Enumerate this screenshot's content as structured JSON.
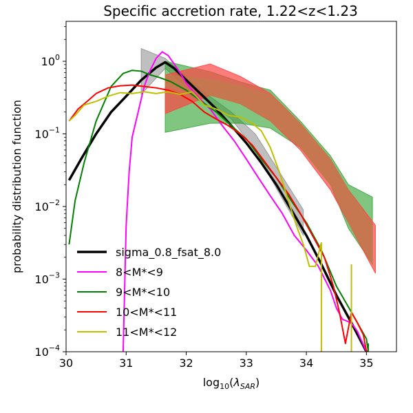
{
  "chart_data": {
    "type": "line",
    "title": "Specific accretion rate, 1.22<z<1.23",
    "xlabel_main": "log",
    "xlabel_sub": "10",
    "xlabel_paren_open": "(",
    "xlabel_lambda": "λ",
    "xlabel_lambda_sub": "SAR",
    "xlabel_paren_close": ")",
    "ylabel": "probability distribution function",
    "xlim": [
      30.0,
      35.5
    ],
    "ylim_log10": [
      -4,
      0.55
    ],
    "y_scale": "log",
    "grid": false,
    "legend_placement": "lower-left",
    "x_ticks": [
      {
        "v": 30,
        "label": "30"
      },
      {
        "v": 31,
        "label": "31"
      },
      {
        "v": 32,
        "label": "32"
      },
      {
        "v": 33,
        "label": "33"
      },
      {
        "v": 34,
        "label": "34"
      },
      {
        "v": 35,
        "label": "35"
      }
    ],
    "y_ticks": [
      {
        "e": 0,
        "base": "10",
        "exp": "0"
      },
      {
        "e": -1,
        "base": "10",
        "exp": "−1"
      },
      {
        "e": -2,
        "base": "10",
        "exp": "−2"
      },
      {
        "e": -3,
        "base": "10",
        "exp": "−3"
      },
      {
        "e": -4,
        "base": "10",
        "exp": "−4"
      }
    ],
    "bands": [
      {
        "color": "#808080",
        "opacity": 0.5,
        "x": [
          31.25,
          31.65,
          32.0,
          32.35,
          32.75,
          33.15,
          33.55,
          33.95
        ],
        "upper": [
          1.5,
          1.1,
          0.6,
          0.35,
          0.2,
          0.1,
          0.03,
          0.009
        ],
        "lower": [
          0.35,
          0.8,
          0.45,
          0.28,
          0.16,
          0.06,
          0.015,
          0.004
        ]
      },
      {
        "color": "#2ca02c",
        "opacity": 0.6,
        "x": [
          31.65,
          32.4,
          32.9,
          33.4,
          33.9,
          34.4,
          34.7,
          35.1
        ],
        "upper": [
          1.0,
          0.72,
          0.52,
          0.4,
          0.15,
          0.05,
          0.02,
          0.0135
        ],
        "lower": [
          0.105,
          0.14,
          0.14,
          0.12,
          0.065,
          0.02,
          0.005,
          0.0016
        ]
      },
      {
        "color": "#ff4444",
        "opacity": 0.7,
        "x": [
          31.65,
          32.4,
          32.9,
          33.4,
          33.9,
          34.4,
          34.7,
          35.15
        ],
        "upper": [
          0.65,
          0.92,
          0.62,
          0.36,
          0.14,
          0.045,
          0.017,
          0.0055
        ],
        "lower": [
          0.19,
          0.34,
          0.26,
          0.15,
          0.06,
          0.017,
          0.006,
          0.0012
        ]
      },
      {
        "color": "#b8824a",
        "opacity": 0.55,
        "x": [
          31.65,
          32.4,
          32.9,
          33.4,
          33.9,
          34.4,
          34.7,
          35.1
        ],
        "upper": [
          0.65,
          0.56,
          0.45,
          0.34,
          0.14,
          0.045,
          0.017,
          0.0055
        ],
        "lower": [
          0.45,
          0.34,
          0.26,
          0.15,
          0.065,
          0.02,
          0.006,
          0.0016
        ]
      }
    ],
    "series": [
      {
        "name": "sigma_0.8_fsat_8.0",
        "color": "#000000",
        "width": 3.5,
        "x": [
          30.05,
          30.25,
          30.5,
          30.75,
          31.0,
          31.25,
          31.5,
          31.65,
          31.8,
          32.0,
          32.25,
          32.5,
          32.75,
          33.0,
          33.25,
          33.5,
          33.75,
          34.0,
          34.25,
          34.5,
          34.75,
          35.0
        ],
        "y": [
          0.023,
          0.045,
          0.1,
          0.2,
          0.33,
          0.55,
          0.82,
          0.97,
          0.8,
          0.55,
          0.35,
          0.22,
          0.13,
          0.075,
          0.04,
          0.02,
          0.009,
          0.004,
          0.0016,
          0.0006,
          0.00025,
          0.0001
        ]
      },
      {
        "name": "8<M*<9",
        "color": "#ff00ff",
        "width": 2,
        "x": [
          30.95,
          31.0,
          31.05,
          31.1,
          31.2,
          31.3,
          31.4,
          31.5,
          31.6,
          31.7,
          31.85,
          32.0,
          32.2,
          32.4,
          32.6,
          32.8,
          33.0,
          33.2,
          33.4,
          33.6,
          33.8,
          34.0,
          34.2,
          34.4,
          34.5,
          34.6,
          34.75,
          34.85,
          35.0
        ],
        "y": [
          0.0001,
          0.0055,
          0.03,
          0.09,
          0.2,
          0.45,
          0.75,
          1.1,
          1.35,
          1.2,
          0.8,
          0.5,
          0.32,
          0.22,
          0.13,
          0.08,
          0.045,
          0.025,
          0.014,
          0.008,
          0.004,
          0.0025,
          0.0015,
          0.0007,
          0.0004,
          0.00028,
          0.00025,
          0.00019,
          0.0001
        ]
      },
      {
        "name": "9<M*<10",
        "color": "#008000",
        "width": 2,
        "x": [
          30.05,
          30.15,
          30.3,
          30.5,
          30.75,
          30.95,
          31.1,
          31.25,
          31.4,
          31.55,
          31.75,
          32.0,
          32.25,
          32.5,
          32.75,
          33.0,
          33.25,
          33.5,
          33.75,
          34.0,
          34.25,
          34.5,
          34.75,
          34.85,
          35.0,
          35.03
        ],
        "y": [
          0.003,
          0.012,
          0.04,
          0.15,
          0.45,
          0.68,
          0.75,
          0.73,
          0.65,
          0.6,
          0.52,
          0.4,
          0.28,
          0.2,
          0.13,
          0.085,
          0.045,
          0.025,
          0.012,
          0.006,
          0.0025,
          0.0008,
          0.00035,
          0.00025,
          0.00015,
          0.0001
        ]
      },
      {
        "name": "10<M*<11",
        "color": "#ff0000",
        "width": 2,
        "x": [
          30.05,
          30.2,
          30.35,
          30.5,
          30.7,
          30.9,
          31.1,
          31.3,
          31.5,
          31.7,
          31.9,
          32.1,
          32.3,
          32.5,
          32.7,
          32.9,
          33.1,
          33.3,
          33.5,
          33.7,
          33.9,
          34.1,
          34.3,
          34.45,
          34.55,
          34.65,
          34.75,
          34.85,
          34.95,
          35.0
        ],
        "y": [
          0.15,
          0.22,
          0.28,
          0.36,
          0.43,
          0.46,
          0.47,
          0.45,
          0.43,
          0.4,
          0.35,
          0.28,
          0.2,
          0.16,
          0.13,
          0.1,
          0.07,
          0.042,
          0.025,
          0.015,
          0.008,
          0.004,
          0.002,
          0.0008,
          0.00035,
          0.00013,
          0.00035,
          0.00025,
          0.00017,
          0.0001
        ]
      },
      {
        "name": "11<M*<12",
        "color": "#bfbf00",
        "width": 2,
        "x": [
          30.05,
          30.15,
          30.3,
          30.5,
          30.7,
          30.9,
          31.1,
          31.3,
          31.5,
          31.7,
          31.9,
          32.1,
          32.3,
          32.5,
          32.7,
          32.9,
          33.1,
          33.25,
          33.4,
          33.55,
          33.7,
          33.85,
          33.95,
          34.05,
          34.15,
          34.25
        ],
        "y": [
          0.15,
          0.18,
          0.25,
          0.28,
          0.33,
          0.37,
          0.36,
          0.38,
          0.36,
          0.38,
          0.35,
          0.38,
          0.25,
          0.22,
          0.18,
          0.17,
          0.14,
          0.11,
          0.065,
          0.03,
          0.012,
          0.005,
          0.003,
          0.0015,
          0.0015,
          0.0032
        ]
      },
      {
        "name": "",
        "color": "#bfbf00",
        "width": 2,
        "legend": false,
        "x": [
          34.25,
          34.25
        ],
        "y": [
          0.0032,
          0.0001
        ]
      },
      {
        "name": "",
        "color": "#bfbf00",
        "width": 2,
        "legend": false,
        "x": [
          34.75,
          34.75
        ],
        "y": [
          0.0016,
          0.0001
        ]
      },
      {
        "name": "",
        "color": "#008000",
        "width": 2,
        "legend": false,
        "x": [
          35.03,
          35.03
        ],
        "y": [
          0.00013,
          0.0001
        ]
      }
    ],
    "legend": [
      {
        "label": "sigma_0.8_fsat_8.0",
        "color": "#000000",
        "width": 3.5
      },
      {
        "label": "8<M*<9",
        "color": "#ff00ff",
        "width": 2
      },
      {
        "label": "9<M*<10",
        "color": "#008000",
        "width": 2
      },
      {
        "label": "10<M*<11",
        "color": "#ff0000",
        "width": 2
      },
      {
        "label": "11<M*<12",
        "color": "#bfbf00",
        "width": 2
      }
    ]
  }
}
